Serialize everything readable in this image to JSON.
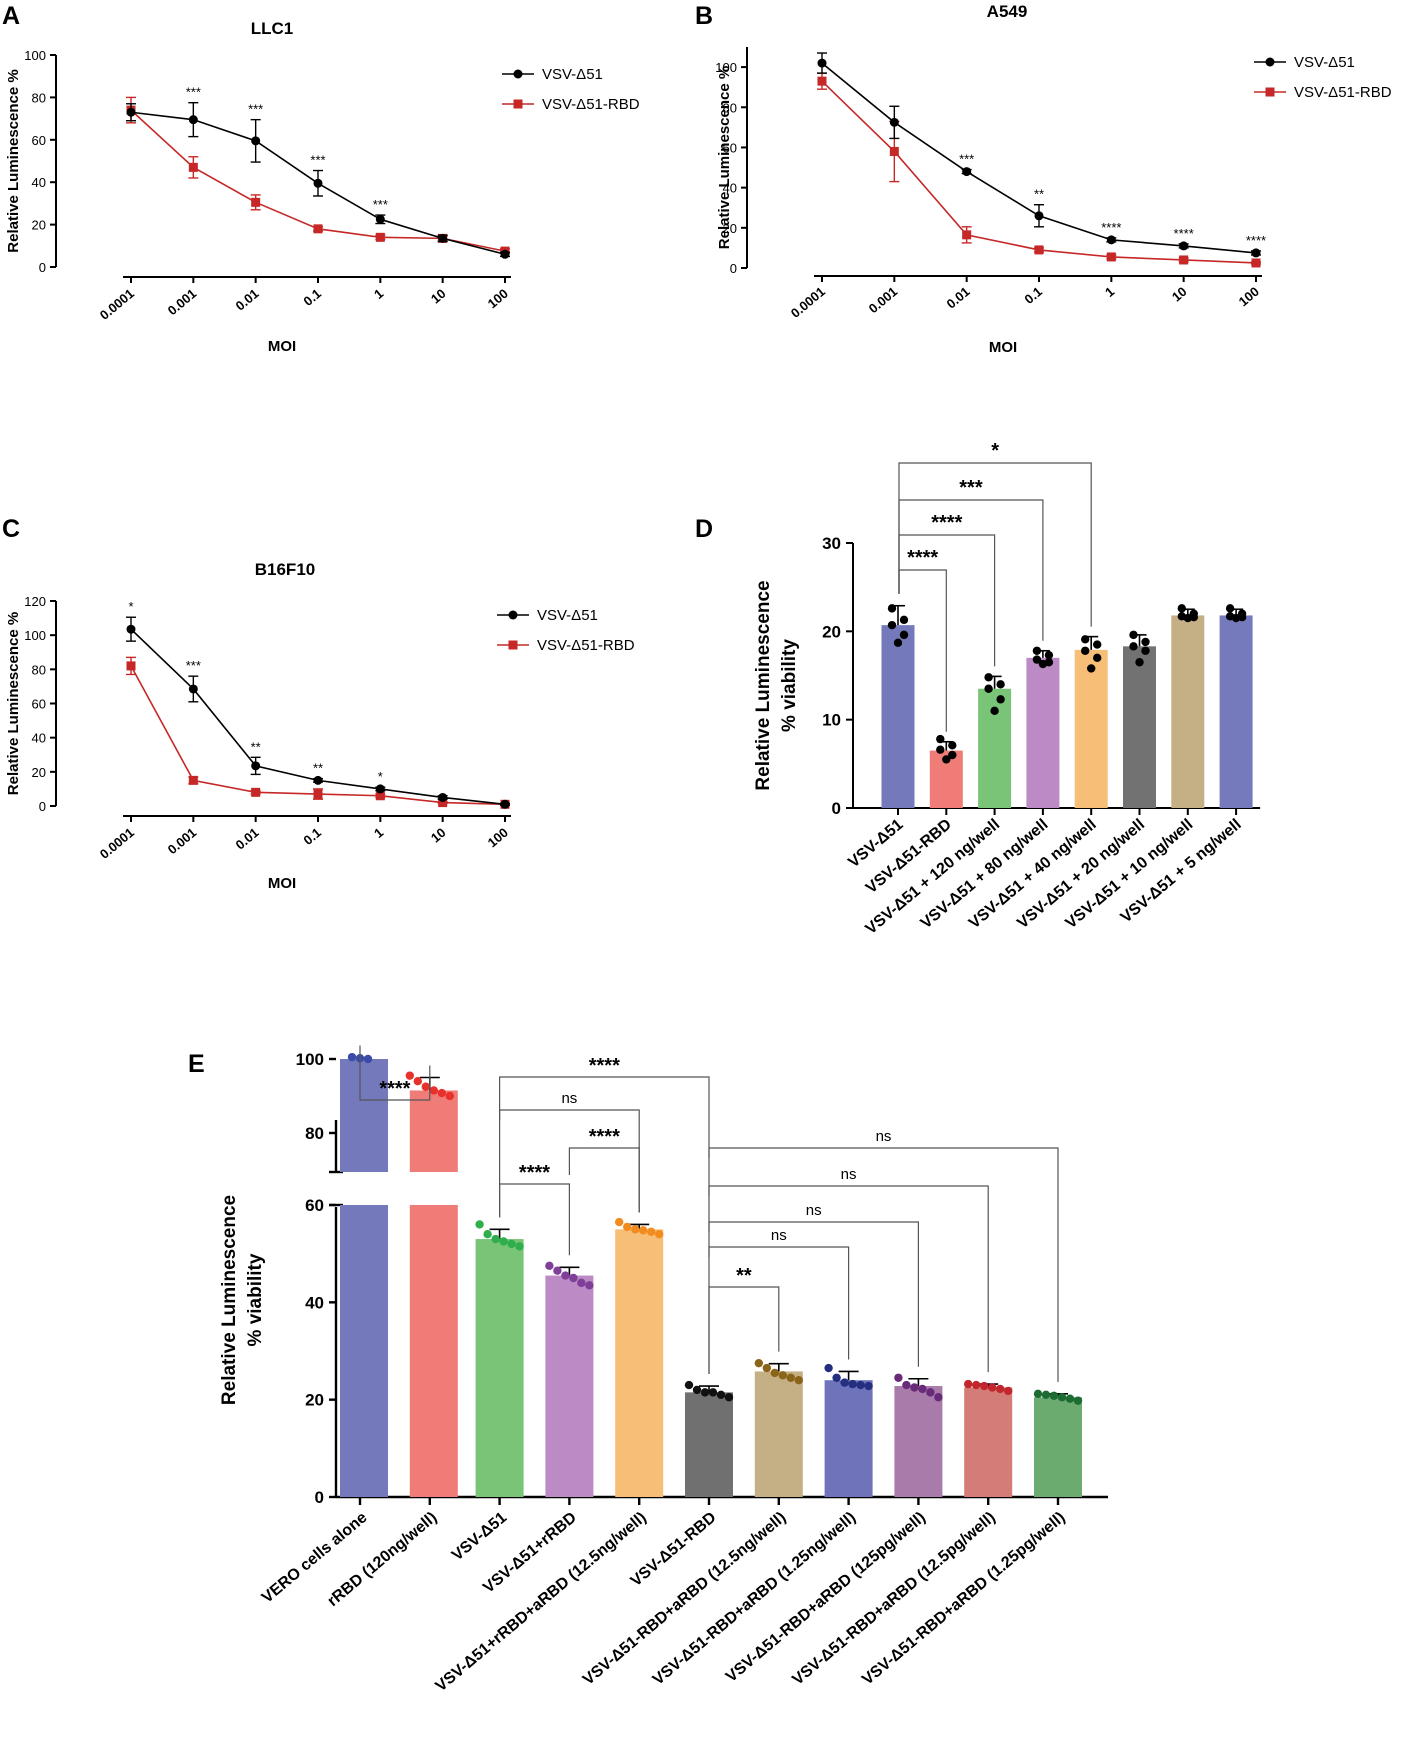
{
  "chart_data": [
    {
      "panel": "A",
      "type": "line",
      "title": "LLC1",
      "xlabel": "MOI",
      "ylabel": "Relative Luminescence %",
      "categories": [
        "0.0001",
        "0.001",
        "0.01",
        "0.1",
        "1",
        "10",
        "100"
      ],
      "yticks": [
        "0",
        "20",
        "40",
        "60",
        "80",
        "100"
      ],
      "ylim": [
        0,
        100
      ],
      "series": [
        {
          "name": "VSV-Δ51",
          "color": "#000000",
          "marker": "circle",
          "values": [
            73,
            69.5,
            59.5,
            39.5,
            22.5,
            13.5,
            6
          ],
          "errors": [
            4,
            8,
            10,
            6,
            2,
            1.5,
            1
          ]
        },
        {
          "name": "VSV-Δ51-RBD",
          "color": "#C62828",
          "marker": "square",
          "values": [
            74,
            47,
            30.5,
            18,
            14,
            13.5,
            7.5
          ],
          "errors": [
            6,
            5,
            3.5,
            1,
            1,
            1,
            1
          ]
        }
      ],
      "significance": [
        {
          "category": "0.001",
          "label": "***"
        },
        {
          "category": "0.01",
          "label": "***"
        },
        {
          "category": "0.1",
          "label": "***"
        },
        {
          "category": "1",
          "label": "***"
        }
      ],
      "legend_position": "top-right"
    },
    {
      "panel": "B",
      "type": "line",
      "title": "A549",
      "xlabel": "MOI",
      "ylabel": "Relative Luminescence %",
      "categories": [
        "0.0001",
        "0.001",
        "0.01",
        "0.1",
        "1",
        "10",
        "100"
      ],
      "yticks": [
        "0",
        "20",
        "40",
        "60",
        "80",
        "100"
      ],
      "ylim": [
        0,
        110
      ],
      "series": [
        {
          "name": "VSV-Δ51",
          "color": "#000000",
          "marker": "circle",
          "values": [
            102,
            72.5,
            48,
            26,
            14,
            11,
            7.5
          ],
          "errors": [
            5,
            8,
            1,
            5.5,
            1,
            1,
            1
          ]
        },
        {
          "name": "VSV-Δ51-RBD",
          "color": "#C62828",
          "marker": "square",
          "values": [
            93,
            58,
            16.5,
            9,
            5.5,
            4,
            2.5
          ],
          "errors": [
            4,
            15,
            4,
            1,
            1,
            1,
            0.5
          ]
        }
      ],
      "significance": [
        {
          "category": "0.01",
          "label": "***"
        },
        {
          "category": "0.1",
          "label": "**"
        },
        {
          "category": "1",
          "label": "****"
        },
        {
          "category": "10",
          "label": "****"
        },
        {
          "category": "100",
          "label": "****"
        }
      ],
      "legend_position": "top-right"
    },
    {
      "panel": "C",
      "type": "line",
      "title": "B16F10",
      "xlabel": "MOI",
      "ylabel": "Relative Luminescence %",
      "categories": [
        "0.0001",
        "0.001",
        "0.01",
        "0.1",
        "1",
        "10",
        "100"
      ],
      "yticks": [
        "0",
        "20",
        "40",
        "60",
        "80",
        "100",
        "120"
      ],
      "ylim": [
        0,
        120
      ],
      "series": [
        {
          "name": "VSV-Δ51",
          "color": "#000000",
          "marker": "circle",
          "values": [
            103.5,
            68.5,
            23.5,
            15,
            10,
            5,
            1
          ],
          "errors": [
            7,
            7.5,
            5,
            1,
            1,
            1,
            0.5
          ]
        },
        {
          "name": "VSV-Δ51-RBD",
          "color": "#C62828",
          "marker": "square",
          "values": [
            82,
            15,
            8,
            7,
            6,
            2,
            1
          ],
          "errors": [
            5,
            2,
            1,
            3,
            1,
            0.5,
            0.5
          ]
        }
      ],
      "significance": [
        {
          "category": "0.0001",
          "label": "*"
        },
        {
          "category": "0.001",
          "label": "***"
        },
        {
          "category": "0.01",
          "label": "**"
        },
        {
          "category": "0.1",
          "label": "**"
        },
        {
          "category": "1",
          "label": "*"
        }
      ],
      "legend_position": "top-right"
    },
    {
      "panel": "D",
      "type": "bar",
      "ylabel": [
        "Relative Luminescence",
        "% viability"
      ],
      "yticks": [
        "0",
        "10",
        "20",
        "30"
      ],
      "ylim": [
        0,
        30
      ],
      "categories": [
        "VSV-Δ51",
        "VSV-Δ51-RBD",
        "VSV-Δ51 + 120 ng/well",
        "VSV-Δ51 + 80 ng/well",
        "VSV-Δ51 + 40 ng/well",
        "VSV-Δ51 + 20 ng/well",
        "VSV-Δ51 + 10 ng/well",
        "VSV-Δ51 + 5 ng/well"
      ],
      "values": [
        20.7,
        6.5,
        13.5,
        17,
        17.9,
        18.3,
        21.8,
        21.8
      ],
      "errors": [
        2.2,
        1.0,
        1.4,
        0.8,
        1.5,
        1.3,
        0.7,
        0.7
      ],
      "colors": [
        "#7479BC",
        "#F07C77",
        "#79C477",
        "#BC8AC4",
        "#F7BE78",
        "#727272",
        "#C5AF85",
        "#757ABC"
      ],
      "points": [
        [
          22.6,
          21.3,
          20.7,
          19.6,
          18.7
        ],
        [
          7.8,
          7.1,
          6.6,
          6.0,
          5.5
        ],
        [
          14.8,
          14.0,
          13.5,
          12.3,
          11.0
        ],
        [
          17.8,
          17.3,
          16.8,
          16.5,
          16.3
        ],
        [
          19.1,
          18.5,
          17.8,
          17.0,
          15.8
        ],
        [
          19.6,
          18.8,
          18.3,
          17.8,
          16.5
        ],
        [
          22.6,
          22.0,
          21.7,
          21.6,
          21.5
        ],
        [
          22.6,
          22.0,
          21.7,
          21.6,
          21.5
        ]
      ],
      "comparisons": [
        {
          "from": 0,
          "to": 1,
          "label": "****"
        },
        {
          "from": 0,
          "to": 2,
          "label": "****"
        },
        {
          "from": 0,
          "to": 3,
          "label": "***"
        },
        {
          "from": 0,
          "to": 4,
          "label": "*"
        }
      ]
    },
    {
      "panel": "E",
      "type": "bar",
      "ylabel": [
        "Relative Luminescence",
        "% viability"
      ],
      "yticks_lower": [
        "0",
        "20",
        "40",
        "60"
      ],
      "yticks_upper": [
        "80",
        "100"
      ],
      "ylim": [
        0,
        104
      ],
      "axis_break": [
        60,
        70
      ],
      "categories": [
        "VERO cells alone",
        "rRBD (120ng/well)",
        "VSV-Δ51",
        "VSV-Δ51+rRBD",
        "VSV-Δ51+rRBD+aRBD (12.5ng/well)",
        "VSV-Δ51-RBD",
        "VSV-Δ51-RBD+aRBD (12.5ng/well)",
        "VSV-Δ51-RBD+aRBD (1.25ng/well)",
        "VSV-Δ51-RBD+aRBD (125pg/well)",
        "VSV-Δ51-RBD+aRBD (12.5pg/well)",
        "VSV-Δ51-RBD+aRBD (1.25pg/well)"
      ],
      "values": [
        100,
        91.5,
        53,
        45.5,
        55,
        21.5,
        25.8,
        24,
        22.8,
        22.5,
        20.5
      ],
      "errors": [
        0.4,
        3.5,
        2,
        1.7,
        1,
        1.3,
        1.6,
        1.8,
        1.5,
        0.7,
        0.7
      ],
      "colors": [
        "#7479BC",
        "#F07C77",
        "#79C477",
        "#BC8AC4",
        "#F7BE78",
        "#707070",
        "#C5AF85",
        "#6F74BA",
        "#A97BAA",
        "#D37C78",
        "#6BAB6F"
      ],
      "point_colors": [
        "#3B4BA8",
        "#E8312C",
        "#2EAF4B",
        "#7F3F98",
        "#F28C1E",
        "#111111",
        "#8A6419",
        "#24307F",
        "#6A2A7A",
        "#C1272D",
        "#1E6B34"
      ],
      "points": [
        [
          100.5,
          100.2,
          100.0
        ],
        [
          95.5,
          94.0,
          92.5,
          91.5,
          90.8,
          90.0
        ],
        [
          56.0,
          54.0,
          53.0,
          52.5,
          52.0,
          51.5
        ],
        [
          47.5,
          46.5,
          45.5,
          45.0,
          44.0,
          43.5
        ],
        [
          56.5,
          55.5,
          55.0,
          54.8,
          54.5,
          54.0
        ],
        [
          23.0,
          22.0,
          21.5,
          21.5,
          21.0,
          20.5
        ],
        [
          27.5,
          26.5,
          25.5,
          25.0,
          24.5,
          24.0
        ],
        [
          26.5,
          24.5,
          23.5,
          23.2,
          23.0,
          22.8
        ],
        [
          24.5,
          23.0,
          22.5,
          22.2,
          21.5,
          20.5
        ],
        [
          23.2,
          23.0,
          22.8,
          22.5,
          22.2,
          21.8
        ],
        [
          21.2,
          21.0,
          20.8,
          20.5,
          20.2,
          19.8
        ]
      ],
      "comparisons": [
        {
          "from": 0,
          "to": 1,
          "label": "****"
        },
        {
          "from": 2,
          "to": 3,
          "label": "****"
        },
        {
          "from": 3,
          "to": 4,
          "label": "****"
        },
        {
          "from": 2,
          "to": 4,
          "label": "ns"
        },
        {
          "from": 2,
          "to": 5,
          "label": "****"
        },
        {
          "from": 5,
          "to": 6,
          "label": "**"
        },
        {
          "from": 5,
          "to": 7,
          "label": "ns"
        },
        {
          "from": 5,
          "to": 8,
          "label": "ns"
        },
        {
          "from": 5,
          "to": 9,
          "label": "ns"
        },
        {
          "from": 5,
          "to": 10,
          "label": "ns"
        }
      ]
    }
  ]
}
